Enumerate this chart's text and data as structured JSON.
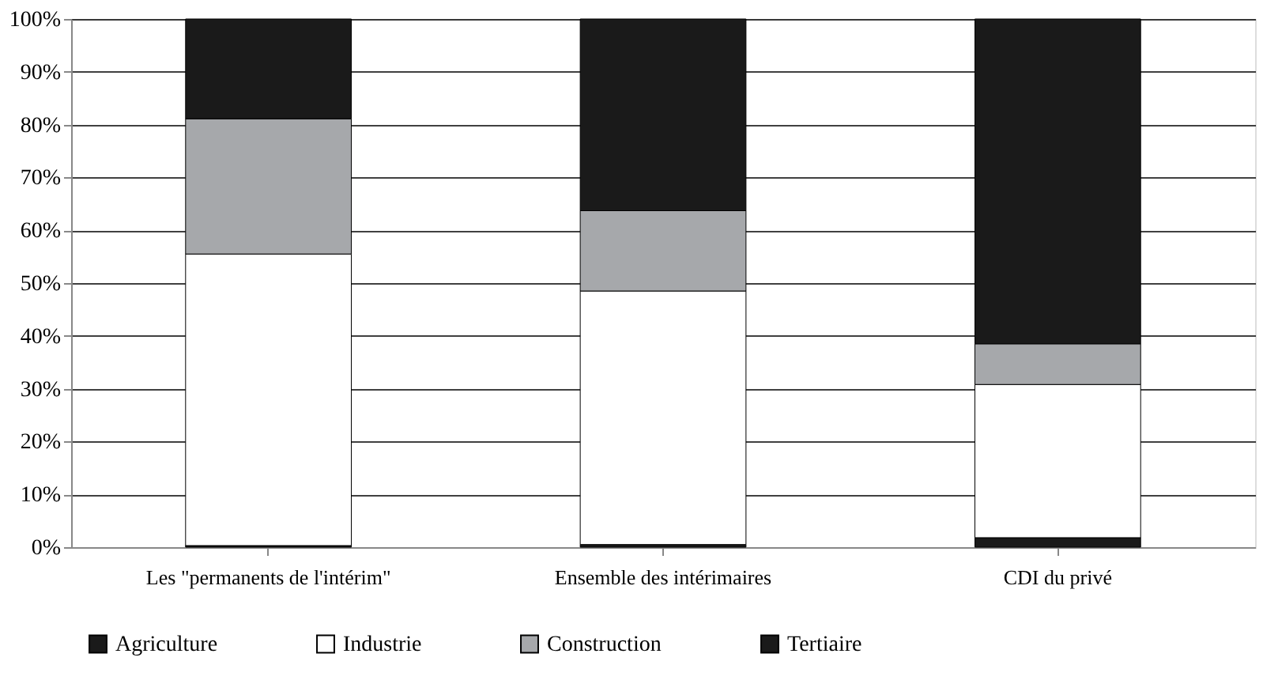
{
  "chart_data": {
    "type": "bar",
    "stacked": true,
    "categories": [
      "Les \"permanents de l'intérim\"",
      "Ensemble des intérimaires",
      "CDI du privé"
    ],
    "series": [
      {
        "name": "Agriculture",
        "color": "#1a1a1a",
        "values": [
          0.3,
          0.5,
          1.8
        ]
      },
      {
        "name": "Industrie",
        "color": "#ffffff",
        "values": [
          55.2,
          48,
          29
        ]
      },
      {
        "name": "Construction",
        "color": "#a6a8ab",
        "values": [
          25.6,
          15.2,
          7.7
        ]
      },
      {
        "name": "Tertiaire",
        "color": "#1a1a1a",
        "values": [
          18.9,
          36.3,
          61.5
        ]
      }
    ],
    "ylim": [
      0,
      100
    ],
    "yticks": [
      {
        "value": 0,
        "label": "0%"
      },
      {
        "value": 10,
        "label": "10%"
      },
      {
        "value": 20,
        "label": "20%"
      },
      {
        "value": 30,
        "label": "30%"
      },
      {
        "value": 40,
        "label": "40%"
      },
      {
        "value": 50,
        "label": "50%"
      },
      {
        "value": 60,
        "label": "60%"
      },
      {
        "value": 70,
        "label": "70%"
      },
      {
        "value": 80,
        "label": "80%"
      },
      {
        "value": 90,
        "label": "90%"
      },
      {
        "value": 100,
        "label": "100%"
      }
    ],
    "grid": "y",
    "legend": "bottom"
  }
}
